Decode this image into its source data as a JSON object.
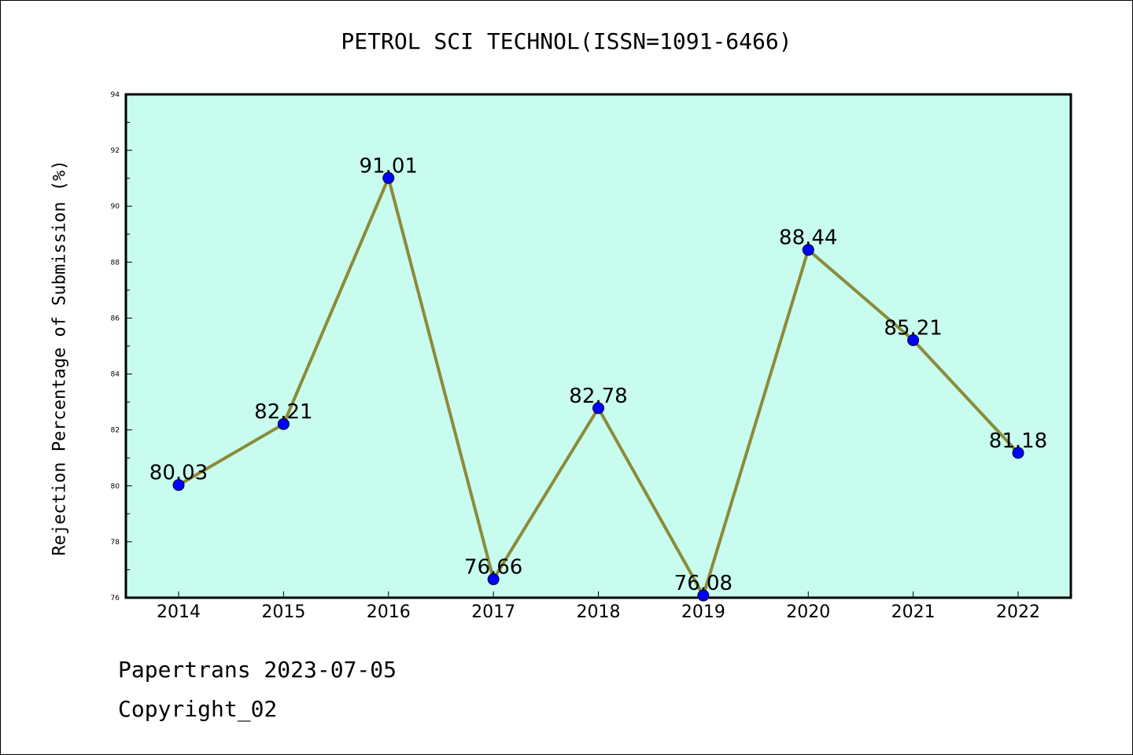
{
  "chart_data": {
    "type": "line",
    "title": "PETROL SCI TECHNOL(ISSN=1091-6466)",
    "ylabel": "Rejection Percentage of Submission (%)",
    "xlabel": "",
    "x": [
      "2014",
      "2015",
      "2016",
      "2017",
      "2018",
      "2019",
      "2020",
      "2021",
      "2022"
    ],
    "series": [
      {
        "values": [
          80.03,
          82.21,
          91.01,
          76.66,
          82.78,
          76.08,
          88.44,
          85.21,
          81.18
        ],
        "data_labels": [
          "80.03",
          "82.21",
          "91.01",
          "76.66",
          "82.78",
          "76.08",
          "88.44",
          "85.21",
          "81.18"
        ]
      }
    ],
    "ylim": [
      76,
      94
    ],
    "yticks": [
      "76",
      "78",
      "80",
      "82",
      "84",
      "86",
      "88",
      "90",
      "92",
      "94"
    ],
    "grid": false,
    "colors": {
      "plot_background": "#c8fcee",
      "line": "#8b8b3a",
      "marker": "#0000ff"
    }
  },
  "footer": {
    "line1": "Papertrans 2023-07-05",
    "line2": "Copyright_02"
  }
}
